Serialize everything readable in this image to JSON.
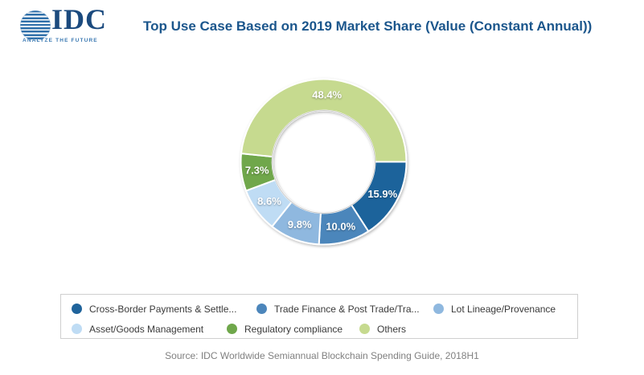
{
  "brand": {
    "logo_text": "IDC",
    "tagline": "ANALYZE THE FUTURE"
  },
  "header": {
    "title": "Top Use Case Based on 2019 Market Share (Value (Constant Annual))"
  },
  "chart_data": {
    "type": "pie",
    "subtype": "donut",
    "title": "Top Use Case Based on 2019 Market Share (Value (Constant Annual))",
    "units": "%",
    "direction": "clockwise",
    "start_angle_deg": 0,
    "inner_radius_ratio": 0.62,
    "legend_position": "bottom",
    "slices": [
      {
        "label": "Cross-Border Payments & Settle...",
        "value": 15.9,
        "display": "15.9%",
        "color": "#1f639b"
      },
      {
        "label": "Trade Finance & Post Trade/Tra...",
        "value": 10.0,
        "display": "10.0%",
        "color": "#4c86bb"
      },
      {
        "label": "Lot Lineage/Provenance",
        "value": 9.8,
        "display": "9.8%",
        "color": "#8fb8df"
      },
      {
        "label": "Asset/Goods Management",
        "value": 8.6,
        "display": "8.6%",
        "color": "#bfdcf4"
      },
      {
        "label": "Regulatory compliance",
        "value": 7.3,
        "display": "7.3%",
        "color": "#6fa74b"
      },
      {
        "label": "Others",
        "value": 48.4,
        "display": "48.4%",
        "color": "#c6da8f"
      }
    ]
  },
  "footer": {
    "source": "Source: IDC Worldwide Semiannual Blockchain Spending Guide, 2018H1"
  }
}
